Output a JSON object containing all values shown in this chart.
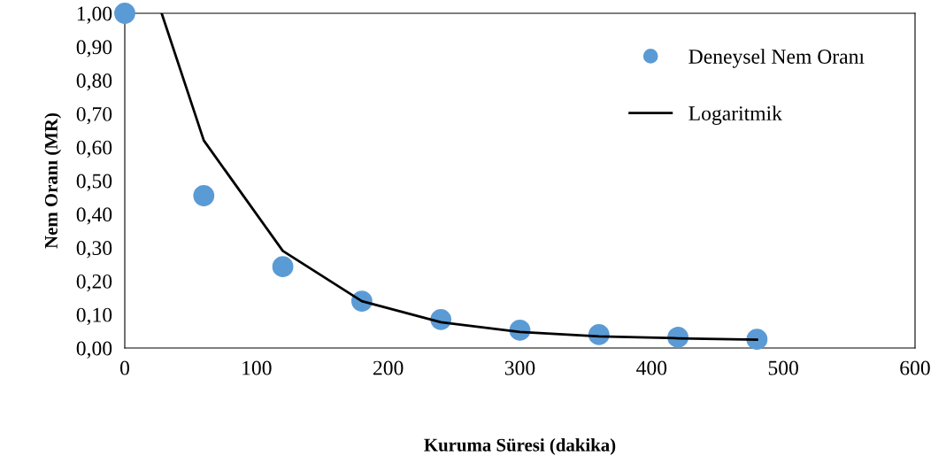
{
  "chart_data": {
    "type": "scatter",
    "xlabel": "Kuruma Süresi (dakika)",
    "ylabel": "Nem Oranı (MR)",
    "series": [
      {
        "name": "Deneysel Nem Oranı",
        "color": "#5b9bd5",
        "marker": "circle",
        "x": [
          0,
          60,
          120,
          180,
          240,
          300,
          360,
          420,
          480
        ],
        "values": [
          1.0,
          0.455,
          0.243,
          0.14,
          0.085,
          0.053,
          0.04,
          0.032,
          0.026
        ]
      },
      {
        "name": "Logaritmik",
        "type": "line",
        "color": "#000000",
        "marker": "none",
        "line_style": "solid",
        "x": [
          28,
          60,
          120,
          180,
          240,
          300,
          360,
          420,
          480
        ],
        "values": [
          1.0,
          0.62,
          0.29,
          0.14,
          0.077,
          0.048,
          0.035,
          0.029,
          0.025
        ]
      }
    ],
    "xlim": [
      0,
      600
    ],
    "xticks": [
      0,
      100,
      200,
      300,
      400,
      500,
      600
    ],
    "ylim": [
      0,
      1
    ],
    "yticks": [
      {
        "value": 0,
        "label": "0,00"
      },
      {
        "value": 0.1,
        "label": "0,10"
      },
      {
        "value": 0.2,
        "label": "0,20"
      },
      {
        "value": 0.3,
        "label": "0,30"
      },
      {
        "value": 0.4,
        "label": "0,40"
      },
      {
        "value": 0.5,
        "label": "0,50"
      },
      {
        "value": 0.6,
        "label": "0,60"
      },
      {
        "value": 0.7,
        "label": "0,70"
      },
      {
        "value": 0.8,
        "label": "0,80"
      },
      {
        "value": 0.9,
        "label": "0,90"
      },
      {
        "value": 1.0,
        "label": "1,00"
      }
    ],
    "grid": false,
    "legend": "top right"
  }
}
